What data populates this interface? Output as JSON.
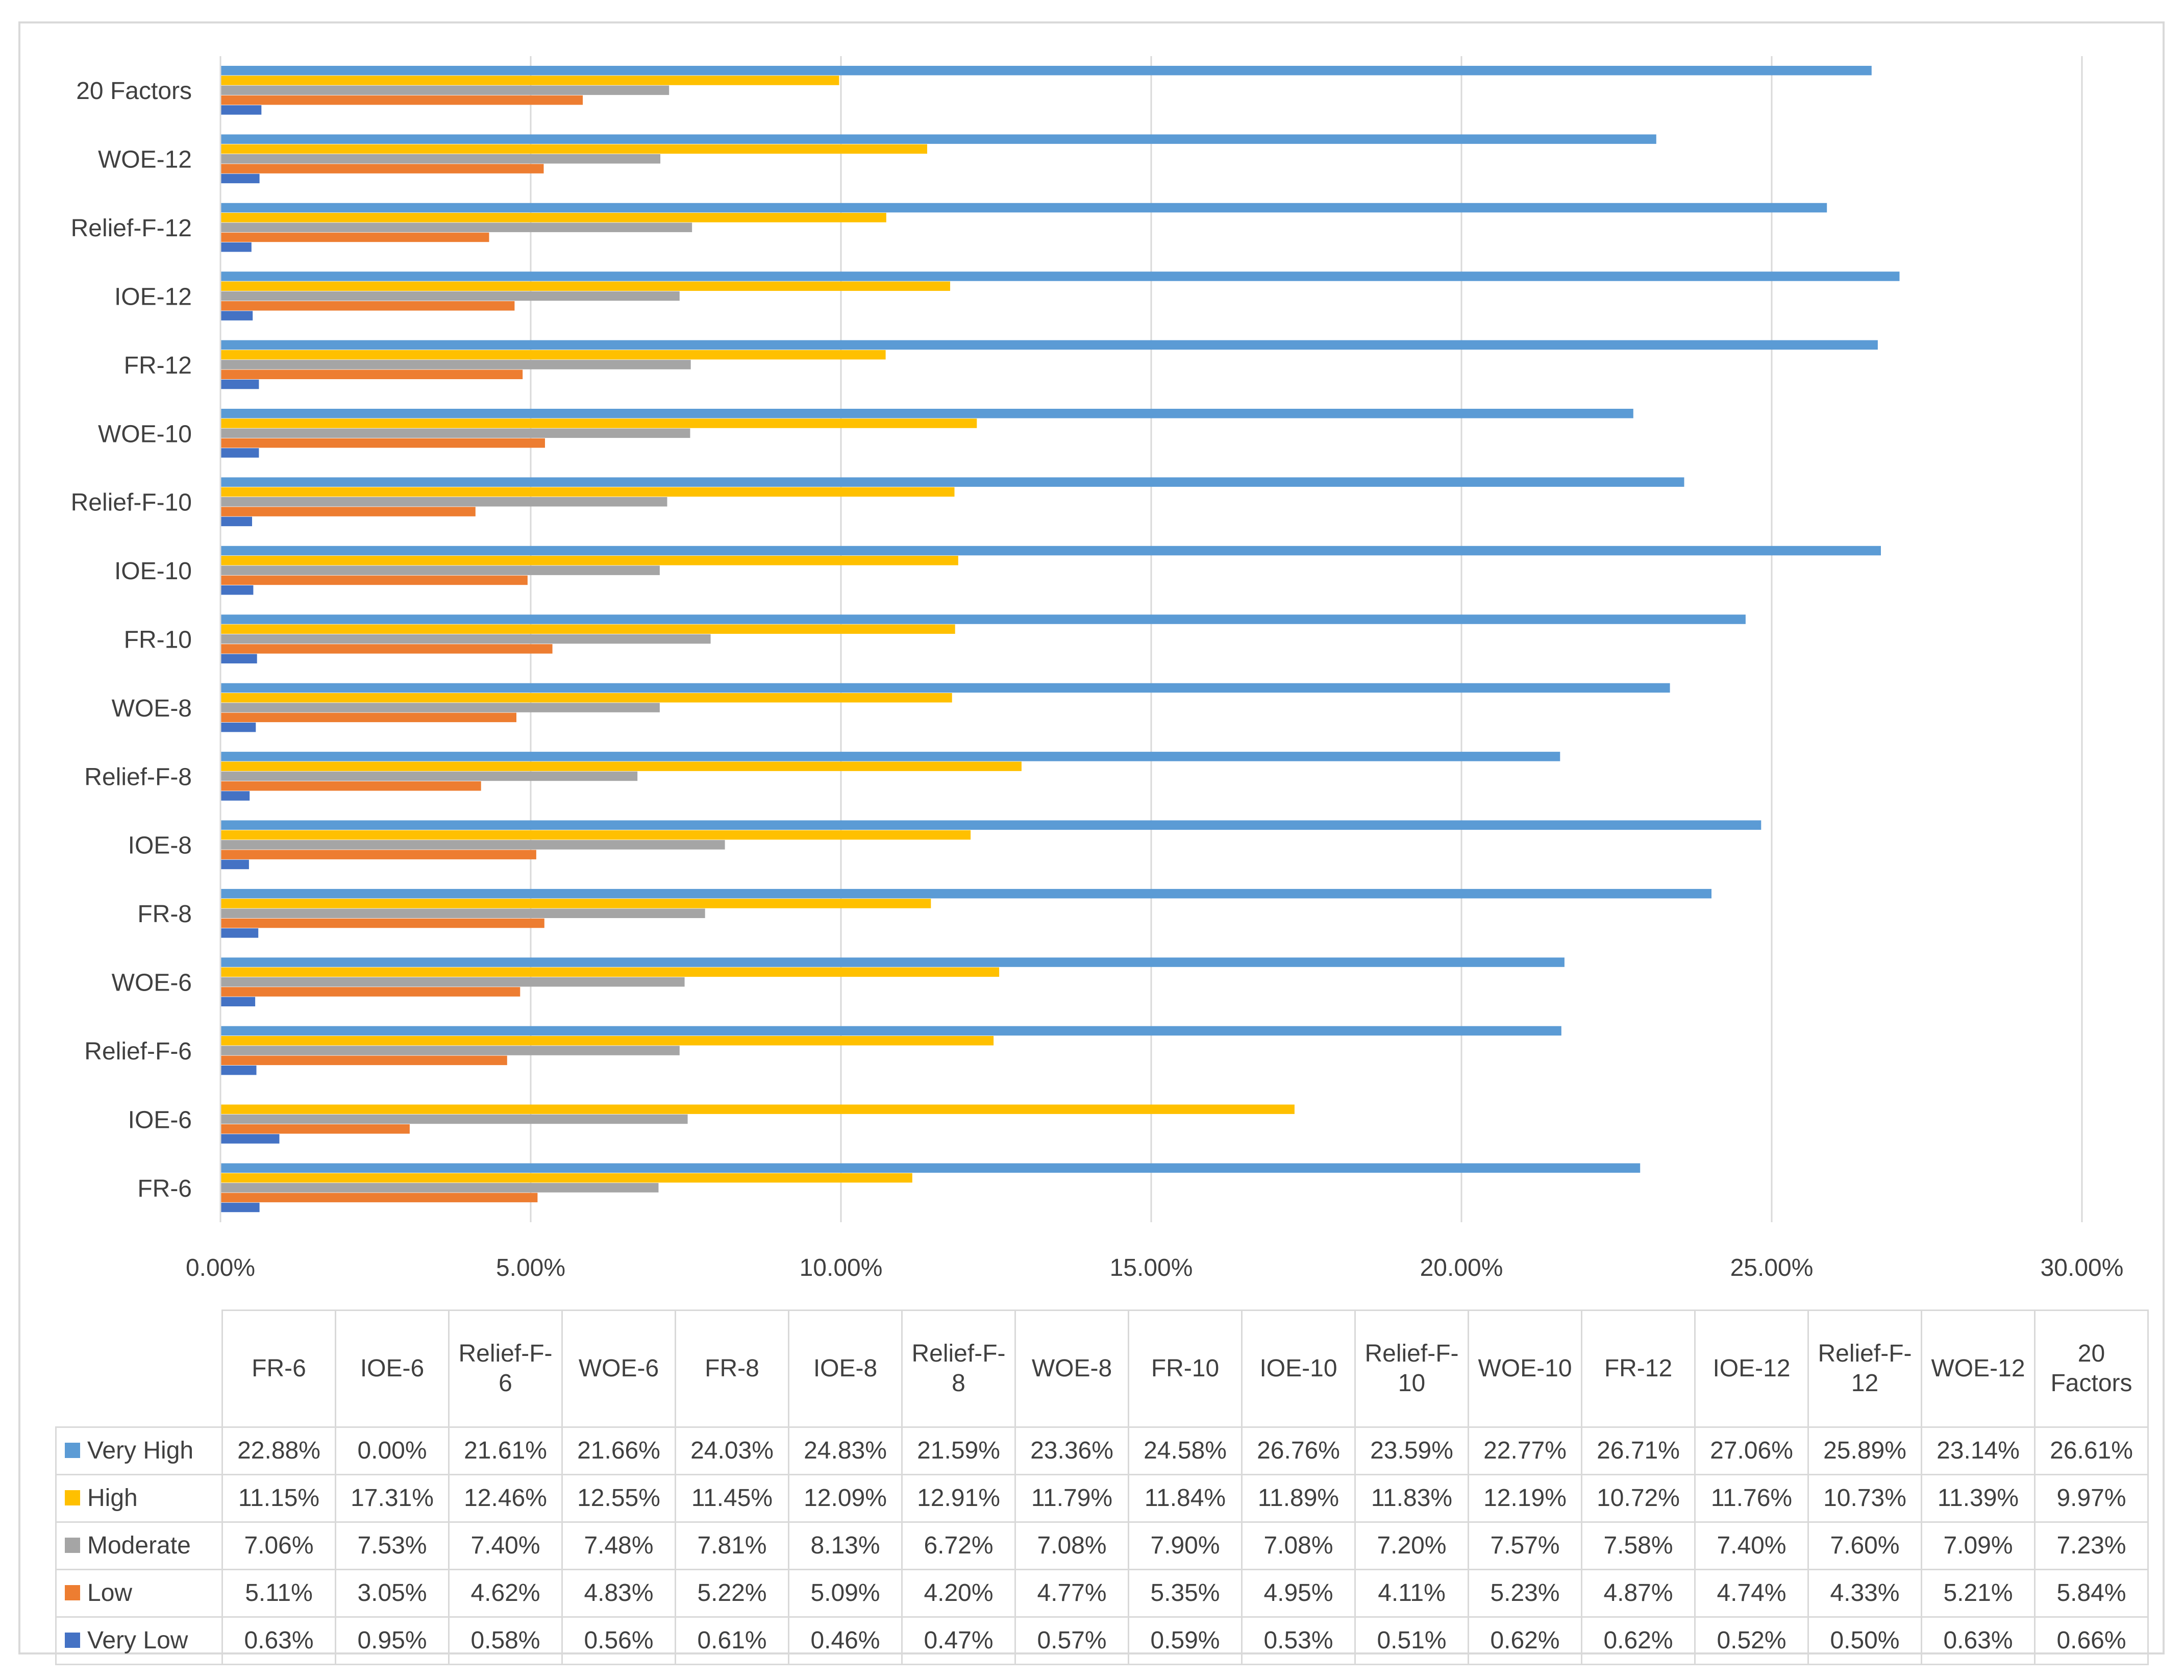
{
  "chart_data": {
    "type": "bar",
    "orientation": "horizontal",
    "categories": [
      "FR-6",
      "IOE-6",
      "Relief-F-6",
      "WOE-6",
      "FR-8",
      "IOE-8",
      "Relief-F-8",
      "WOE-8",
      "FR-10",
      "IOE-10",
      "Relief-F-10",
      "WOE-10",
      "FR-12",
      "IOE-12",
      "Relief-F-12",
      "WOE-12",
      "20 Factors"
    ],
    "table_headers": [
      [
        "FR-6"
      ],
      [
        "IOE-6"
      ],
      [
        "Relief-F-",
        "6"
      ],
      [
        "WOE-6"
      ],
      [
        "FR-8"
      ],
      [
        "IOE-8"
      ],
      [
        "Relief-F-",
        "8"
      ],
      [
        "WOE-8"
      ],
      [
        "FR-10"
      ],
      [
        "IOE-10"
      ],
      [
        "Relief-F-",
        "10"
      ],
      [
        "WOE-10"
      ],
      [
        "FR-12"
      ],
      [
        "IOE-12"
      ],
      [
        "Relief-F-",
        "12"
      ],
      [
        "WOE-12"
      ],
      [
        "20",
        "Factors"
      ]
    ],
    "series": [
      {
        "name": "Very High",
        "color": "#5b9bd5",
        "values": [
          22.88,
          0.0,
          21.61,
          21.66,
          24.03,
          24.83,
          21.59,
          23.36,
          24.58,
          26.76,
          23.59,
          22.77,
          26.71,
          27.06,
          25.89,
          23.14,
          26.61
        ],
        "labels": [
          "22.88%",
          "0.00%",
          "21.61%",
          "21.66%",
          "24.03%",
          "24.83%",
          "21.59%",
          "23.36%",
          "24.58%",
          "26.76%",
          "23.59%",
          "22.77%",
          "26.71%",
          "27.06%",
          "25.89%",
          "23.14%",
          "26.61%"
        ]
      },
      {
        "name": "High",
        "color": "#ffc000",
        "values": [
          11.15,
          17.31,
          12.46,
          12.55,
          11.45,
          12.09,
          12.91,
          11.79,
          11.84,
          11.89,
          11.83,
          12.19,
          10.72,
          11.76,
          10.73,
          11.39,
          9.97
        ],
        "labels": [
          "11.15%",
          "17.31%",
          "12.46%",
          "12.55%",
          "11.45%",
          "12.09%",
          "12.91%",
          "11.79%",
          "11.84%",
          "11.89%",
          "11.83%",
          "12.19%",
          "10.72%",
          "11.76%",
          "10.73%",
          "11.39%",
          "9.97%"
        ]
      },
      {
        "name": "Moderate",
        "color": "#a5a5a5",
        "values": [
          7.06,
          7.53,
          7.4,
          7.48,
          7.81,
          8.13,
          6.72,
          7.08,
          7.9,
          7.08,
          7.2,
          7.57,
          7.58,
          7.4,
          7.6,
          7.09,
          7.23
        ],
        "labels": [
          "7.06%",
          "7.53%",
          "7.40%",
          "7.48%",
          "7.81%",
          "8.13%",
          "6.72%",
          "7.08%",
          "7.90%",
          "7.08%",
          "7.20%",
          "7.57%",
          "7.58%",
          "7.40%",
          "7.60%",
          "7.09%",
          "7.23%"
        ]
      },
      {
        "name": "Low",
        "color": "#ed7d31",
        "values": [
          5.11,
          3.05,
          4.62,
          4.83,
          5.22,
          5.09,
          4.2,
          4.77,
          5.35,
          4.95,
          4.11,
          5.23,
          4.87,
          4.74,
          4.33,
          5.21,
          5.84
        ],
        "labels": [
          "5.11%",
          "3.05%",
          "4.62%",
          "4.83%",
          "5.22%",
          "5.09%",
          "4.20%",
          "4.77%",
          "5.35%",
          "4.95%",
          "4.11%",
          "5.23%",
          "4.87%",
          "4.74%",
          "4.33%",
          "5.21%",
          "5.84%"
        ]
      },
      {
        "name": "Very Low",
        "color": "#4472c4",
        "values": [
          0.63,
          0.95,
          0.58,
          0.56,
          0.61,
          0.46,
          0.47,
          0.57,
          0.59,
          0.53,
          0.51,
          0.62,
          0.62,
          0.52,
          0.5,
          0.63,
          0.66
        ],
        "labels": [
          "0.63%",
          "0.95%",
          "0.58%",
          "0.56%",
          "0.61%",
          "0.46%",
          "0.47%",
          "0.57%",
          "0.59%",
          "0.53%",
          "0.51%",
          "0.62%",
          "0.62%",
          "0.52%",
          "0.50%",
          "0.63%",
          "0.66%"
        ]
      }
    ],
    "xlim": [
      0,
      30
    ],
    "x_ticks": [
      0,
      5,
      10,
      15,
      20,
      25,
      30
    ],
    "x_tick_labels": [
      "0.00%",
      "5.00%",
      "10.00%",
      "15.00%",
      "20.00%",
      "25.00%",
      "30.00%"
    ],
    "grid": true,
    "legend": "data-table-below",
    "title": "",
    "xlabel": "",
    "ylabel": ""
  }
}
